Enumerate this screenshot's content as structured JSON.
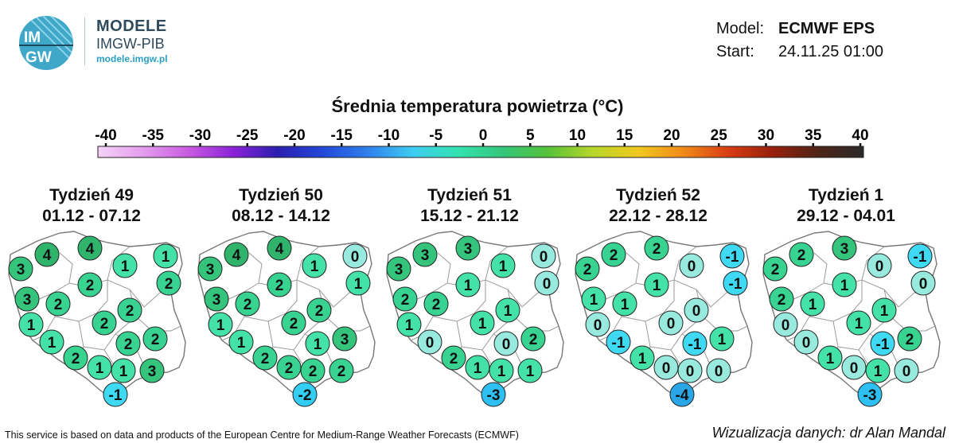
{
  "header": {
    "brand_title": "MODELE",
    "brand_org": "IMGW-PIB",
    "brand_url": "modele.imgw.pl",
    "logo_text_top": "IM",
    "logo_text_bottom": "GW",
    "model_label": "Model:",
    "model_value": "ECMWF EPS",
    "start_label": "Start:",
    "start_value": "24.11.25 01:00"
  },
  "colorbar": {
    "title": "Średnia temperatura powietrza (°C)",
    "ticks": [
      "-40",
      "-35",
      "-30",
      "-25",
      "-20",
      "-15",
      "-10",
      "-5",
      "0",
      "5",
      "10",
      "15",
      "20",
      "25",
      "30",
      "35",
      "40"
    ],
    "stops": [
      "#f5d3f7",
      "#e49cee",
      "#c85ce0",
      "#8b22d8",
      "#2a1eb0",
      "#2348d8",
      "#2f80ec",
      "#3ecdf2",
      "#34e2b0",
      "#34c67a",
      "#57c23a",
      "#b8d62a",
      "#f0c81e",
      "#f08a18",
      "#d83c14",
      "#96200c",
      "#4e2418",
      "#2a2a2a"
    ]
  },
  "map_style": {
    "land_fill": "#ffffff",
    "border_color": "#777777",
    "marker_stroke": "#222222"
  },
  "weeks": [
    {
      "title": "Tydzień 49",
      "dates": "01.12 - 07.12",
      "values": [
        3,
        4,
        4,
        1,
        1,
        2,
        2,
        3,
        2,
        2,
        1,
        2,
        2,
        1,
        2,
        2,
        1,
        1,
        3,
        -1
      ]
    },
    {
      "title": "Tydzień 50",
      "dates": "08.12 - 14.12",
      "values": [
        3,
        4,
        4,
        1,
        0,
        2,
        1,
        3,
        2,
        2,
        1,
        2,
        3,
        1,
        1,
        2,
        2,
        2,
        2,
        -2
      ]
    },
    {
      "title": "Tydzień 51",
      "dates": "15.12 - 21.12",
      "values": [
        3,
        3,
        3,
        1,
        0,
        1,
        0,
        2,
        2,
        1,
        1,
        1,
        2,
        0,
        0,
        2,
        1,
        1,
        1,
        -3
      ]
    },
    {
      "title": "Tydzień 52",
      "dates": "22.12 - 28.12",
      "values": [
        2,
        2,
        2,
        0,
        -1,
        1,
        -1,
        1,
        1,
        0,
        0,
        0,
        1,
        -1,
        -1,
        1,
        0,
        0,
        0,
        -4
      ]
    },
    {
      "title": "Tydzień 1",
      "dates": "29.12 - 04.01",
      "values": [
        2,
        2,
        3,
        0,
        -1,
        1,
        0,
        2,
        1,
        1,
        0,
        1,
        2,
        0,
        -1,
        1,
        0,
        1,
        0,
        -3
      ]
    }
  ],
  "footer": {
    "left": "This service is based on data and products of the European Centre for Medium-Range Weather Forecasts (ECMWF)",
    "right": "Wizualizacja danych: dr Alan Mandal"
  }
}
